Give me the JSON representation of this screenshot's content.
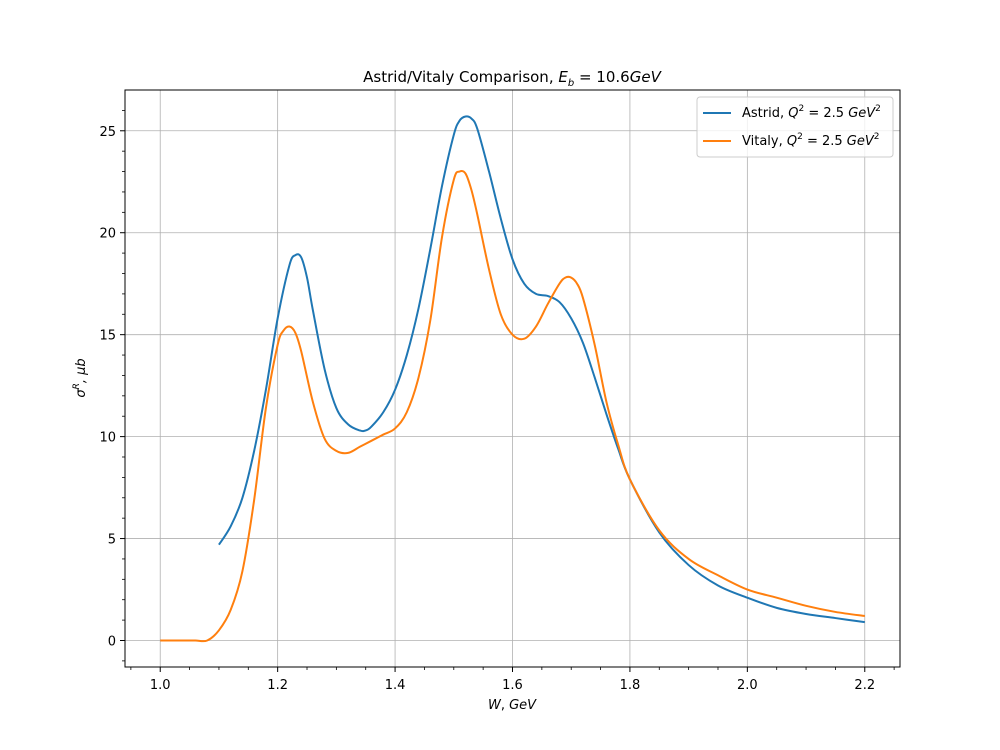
{
  "chart_data": {
    "type": "line",
    "title": "Astrid/Vitaly Comparison, E_b = 10.6GeV",
    "title_parts": {
      "prefix": "Astrid/Vitaly Comparison, ",
      "var_main": "E",
      "var_sub": "b",
      "eq": " = 10.6",
      "unit": "GeV"
    },
    "xlabel": "W, GeV",
    "xlabel_parts": {
      "a": "W",
      "b": ", ",
      "c": "GeV"
    },
    "ylabel": "σ^R, μb",
    "ylabel_parts": {
      "sym": "σ",
      "sup": "R",
      "rest": ", μb"
    },
    "xlim": [
      0.94,
      2.26
    ],
    "ylim": [
      -1.3,
      27
    ],
    "xticks": [
      1.0,
      1.2,
      1.4,
      1.6,
      1.8,
      2.0,
      2.2
    ],
    "xtick_labels": [
      "1.0",
      "1.2",
      "1.4",
      "1.6",
      "1.8",
      "2.0",
      "2.2"
    ],
    "yticks": [
      0,
      5,
      10,
      15,
      20,
      25
    ],
    "ytick_labels": [
      "0",
      "5",
      "10",
      "15",
      "20",
      "25"
    ],
    "grid": true,
    "legend_position": "top-right",
    "series": [
      {
        "name": "Astrid, Q^2 = 2.5 GeV^2",
        "legend_parts": {
          "label": "Astrid, ",
          "q": "Q",
          "qexp": "2",
          "eq": " = 2.5 ",
          "unit": "GeV",
          "uexp": "2"
        },
        "color": "#1f77b4",
        "x": [
          1.1,
          1.12,
          1.14,
          1.16,
          1.18,
          1.2,
          1.22,
          1.23,
          1.24,
          1.25,
          1.26,
          1.28,
          1.3,
          1.32,
          1.34,
          1.35,
          1.36,
          1.38,
          1.4,
          1.42,
          1.44,
          1.46,
          1.48,
          1.5,
          1.51,
          1.52,
          1.53,
          1.54,
          1.56,
          1.58,
          1.6,
          1.62,
          1.64,
          1.66,
          1.68,
          1.7,
          1.72,
          1.74,
          1.76,
          1.78,
          1.8,
          1.85,
          1.9,
          1.95,
          2.0,
          2.05,
          2.1,
          2.15,
          2.2
        ],
        "y": [
          4.7,
          5.6,
          7.0,
          9.3,
          12.3,
          15.8,
          18.4,
          18.9,
          18.8,
          17.8,
          16.2,
          13.3,
          11.4,
          10.6,
          10.3,
          10.3,
          10.5,
          11.2,
          12.3,
          14.0,
          16.3,
          19.2,
          22.3,
          24.8,
          25.5,
          25.7,
          25.6,
          25.1,
          23.0,
          20.7,
          18.7,
          17.5,
          17.0,
          16.9,
          16.6,
          15.8,
          14.6,
          12.9,
          11.1,
          9.4,
          7.9,
          5.3,
          3.7,
          2.7,
          2.1,
          1.6,
          1.3,
          1.1,
          0.9
        ]
      },
      {
        "name": "Vitaly, Q^2 = 2.5 GeV^2",
        "legend_parts": {
          "label": "Vitaly, ",
          "q": "Q",
          "qexp": "2",
          "eq": " = 2.5 ",
          "unit": "GeV",
          "uexp": "2"
        },
        "color": "#ff7f0e",
        "x": [
          1.0,
          1.02,
          1.04,
          1.06,
          1.08,
          1.1,
          1.12,
          1.14,
          1.16,
          1.18,
          1.2,
          1.21,
          1.22,
          1.23,
          1.24,
          1.26,
          1.28,
          1.3,
          1.32,
          1.34,
          1.36,
          1.38,
          1.4,
          1.42,
          1.44,
          1.46,
          1.48,
          1.5,
          1.51,
          1.52,
          1.53,
          1.54,
          1.56,
          1.58,
          1.6,
          1.62,
          1.64,
          1.66,
          1.68,
          1.69,
          1.7,
          1.71,
          1.72,
          1.74,
          1.76,
          1.78,
          1.8,
          1.85,
          1.9,
          1.95,
          2.0,
          2.05,
          2.1,
          2.15,
          2.2
        ],
        "y": [
          0.0,
          0.0,
          0.0,
          0.0,
          0.0,
          0.5,
          1.5,
          3.4,
          6.9,
          11.4,
          14.5,
          15.2,
          15.4,
          15.1,
          14.2,
          11.7,
          9.9,
          9.3,
          9.2,
          9.5,
          9.8,
          10.1,
          10.4,
          11.2,
          12.9,
          15.7,
          19.8,
          22.6,
          23.0,
          22.9,
          22.1,
          20.9,
          18.2,
          16.0,
          15.0,
          14.8,
          15.4,
          16.5,
          17.5,
          17.8,
          17.8,
          17.5,
          16.8,
          14.5,
          11.7,
          9.6,
          7.9,
          5.4,
          4.0,
          3.2,
          2.5,
          2.1,
          1.7,
          1.4,
          1.2
        ]
      }
    ]
  }
}
